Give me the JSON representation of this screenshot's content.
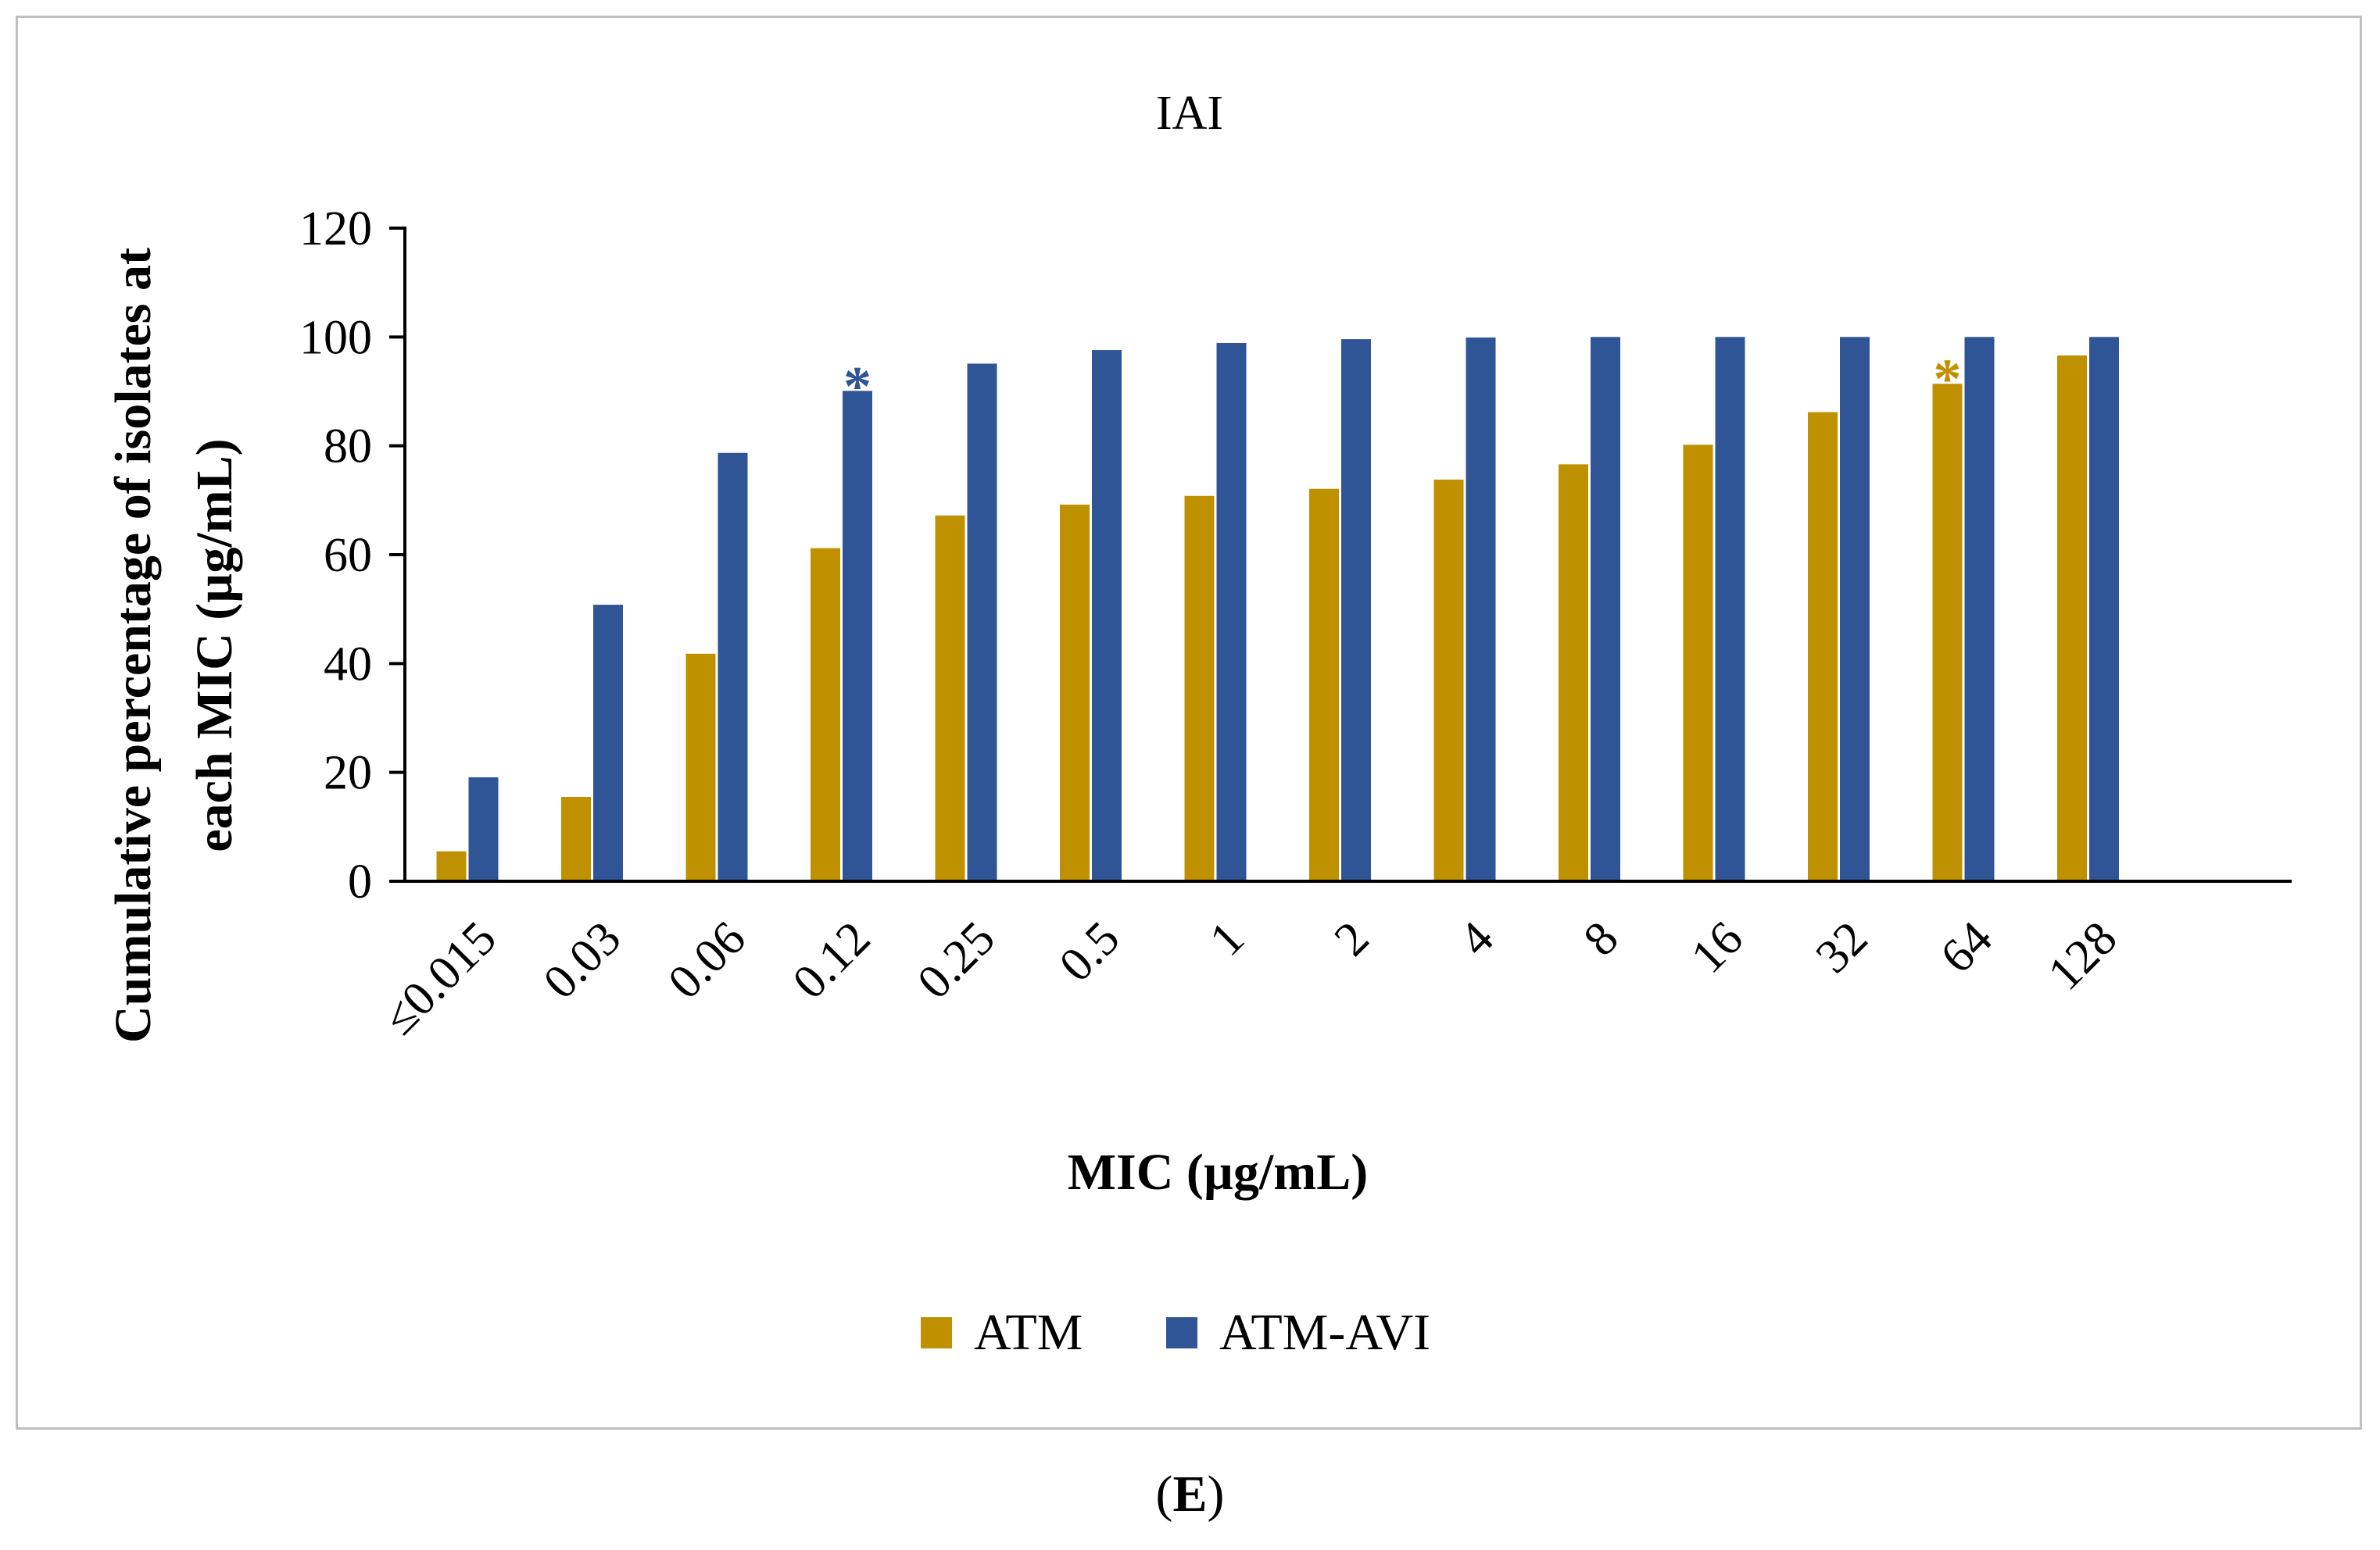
{
  "chart_data": {
    "type": "bar",
    "title": "IAI",
    "xlabel": "MIC (µg/mL)",
    "ylabel_lines": [
      "Cumulative percentage of isolates at",
      "each MIC (µg/mL)"
    ],
    "ylim": [
      0,
      120
    ],
    "yticks": [
      0,
      20,
      40,
      60,
      80,
      100,
      120
    ],
    "categories": [
      "≤0.015",
      "0.03",
      "0.06",
      "0.12",
      "0.25",
      "0.5",
      "1",
      "2",
      "4",
      "8",
      "16",
      "32",
      "64",
      "128"
    ],
    "series": [
      {
        "name": "ATM",
        "color": "#bf9000",
        "values": [
          5.5,
          15.5,
          41.8,
          61.2,
          67.2,
          69.2,
          70.8,
          72.1,
          73.8,
          76.6,
          80.2,
          86.2,
          91.4,
          96.6
        ]
      },
      {
        "name": "ATM-AVI",
        "color": "#2f5597",
        "values": [
          19.1,
          50.8,
          78.7,
          90.1,
          95.1,
          97.6,
          98.9,
          99.6,
          99.9,
          100,
          100,
          100,
          100,
          100
        ]
      }
    ],
    "annotations": [
      {
        "text": "*",
        "series": "ATM-AVI",
        "category": "0.12"
      },
      {
        "text": "*",
        "series": "ATM",
        "category": "64"
      }
    ],
    "legend_position": "bottom-center",
    "grid": false
  },
  "panel_label": {
    "open": "(",
    "letter": "E",
    "close": ")"
  }
}
